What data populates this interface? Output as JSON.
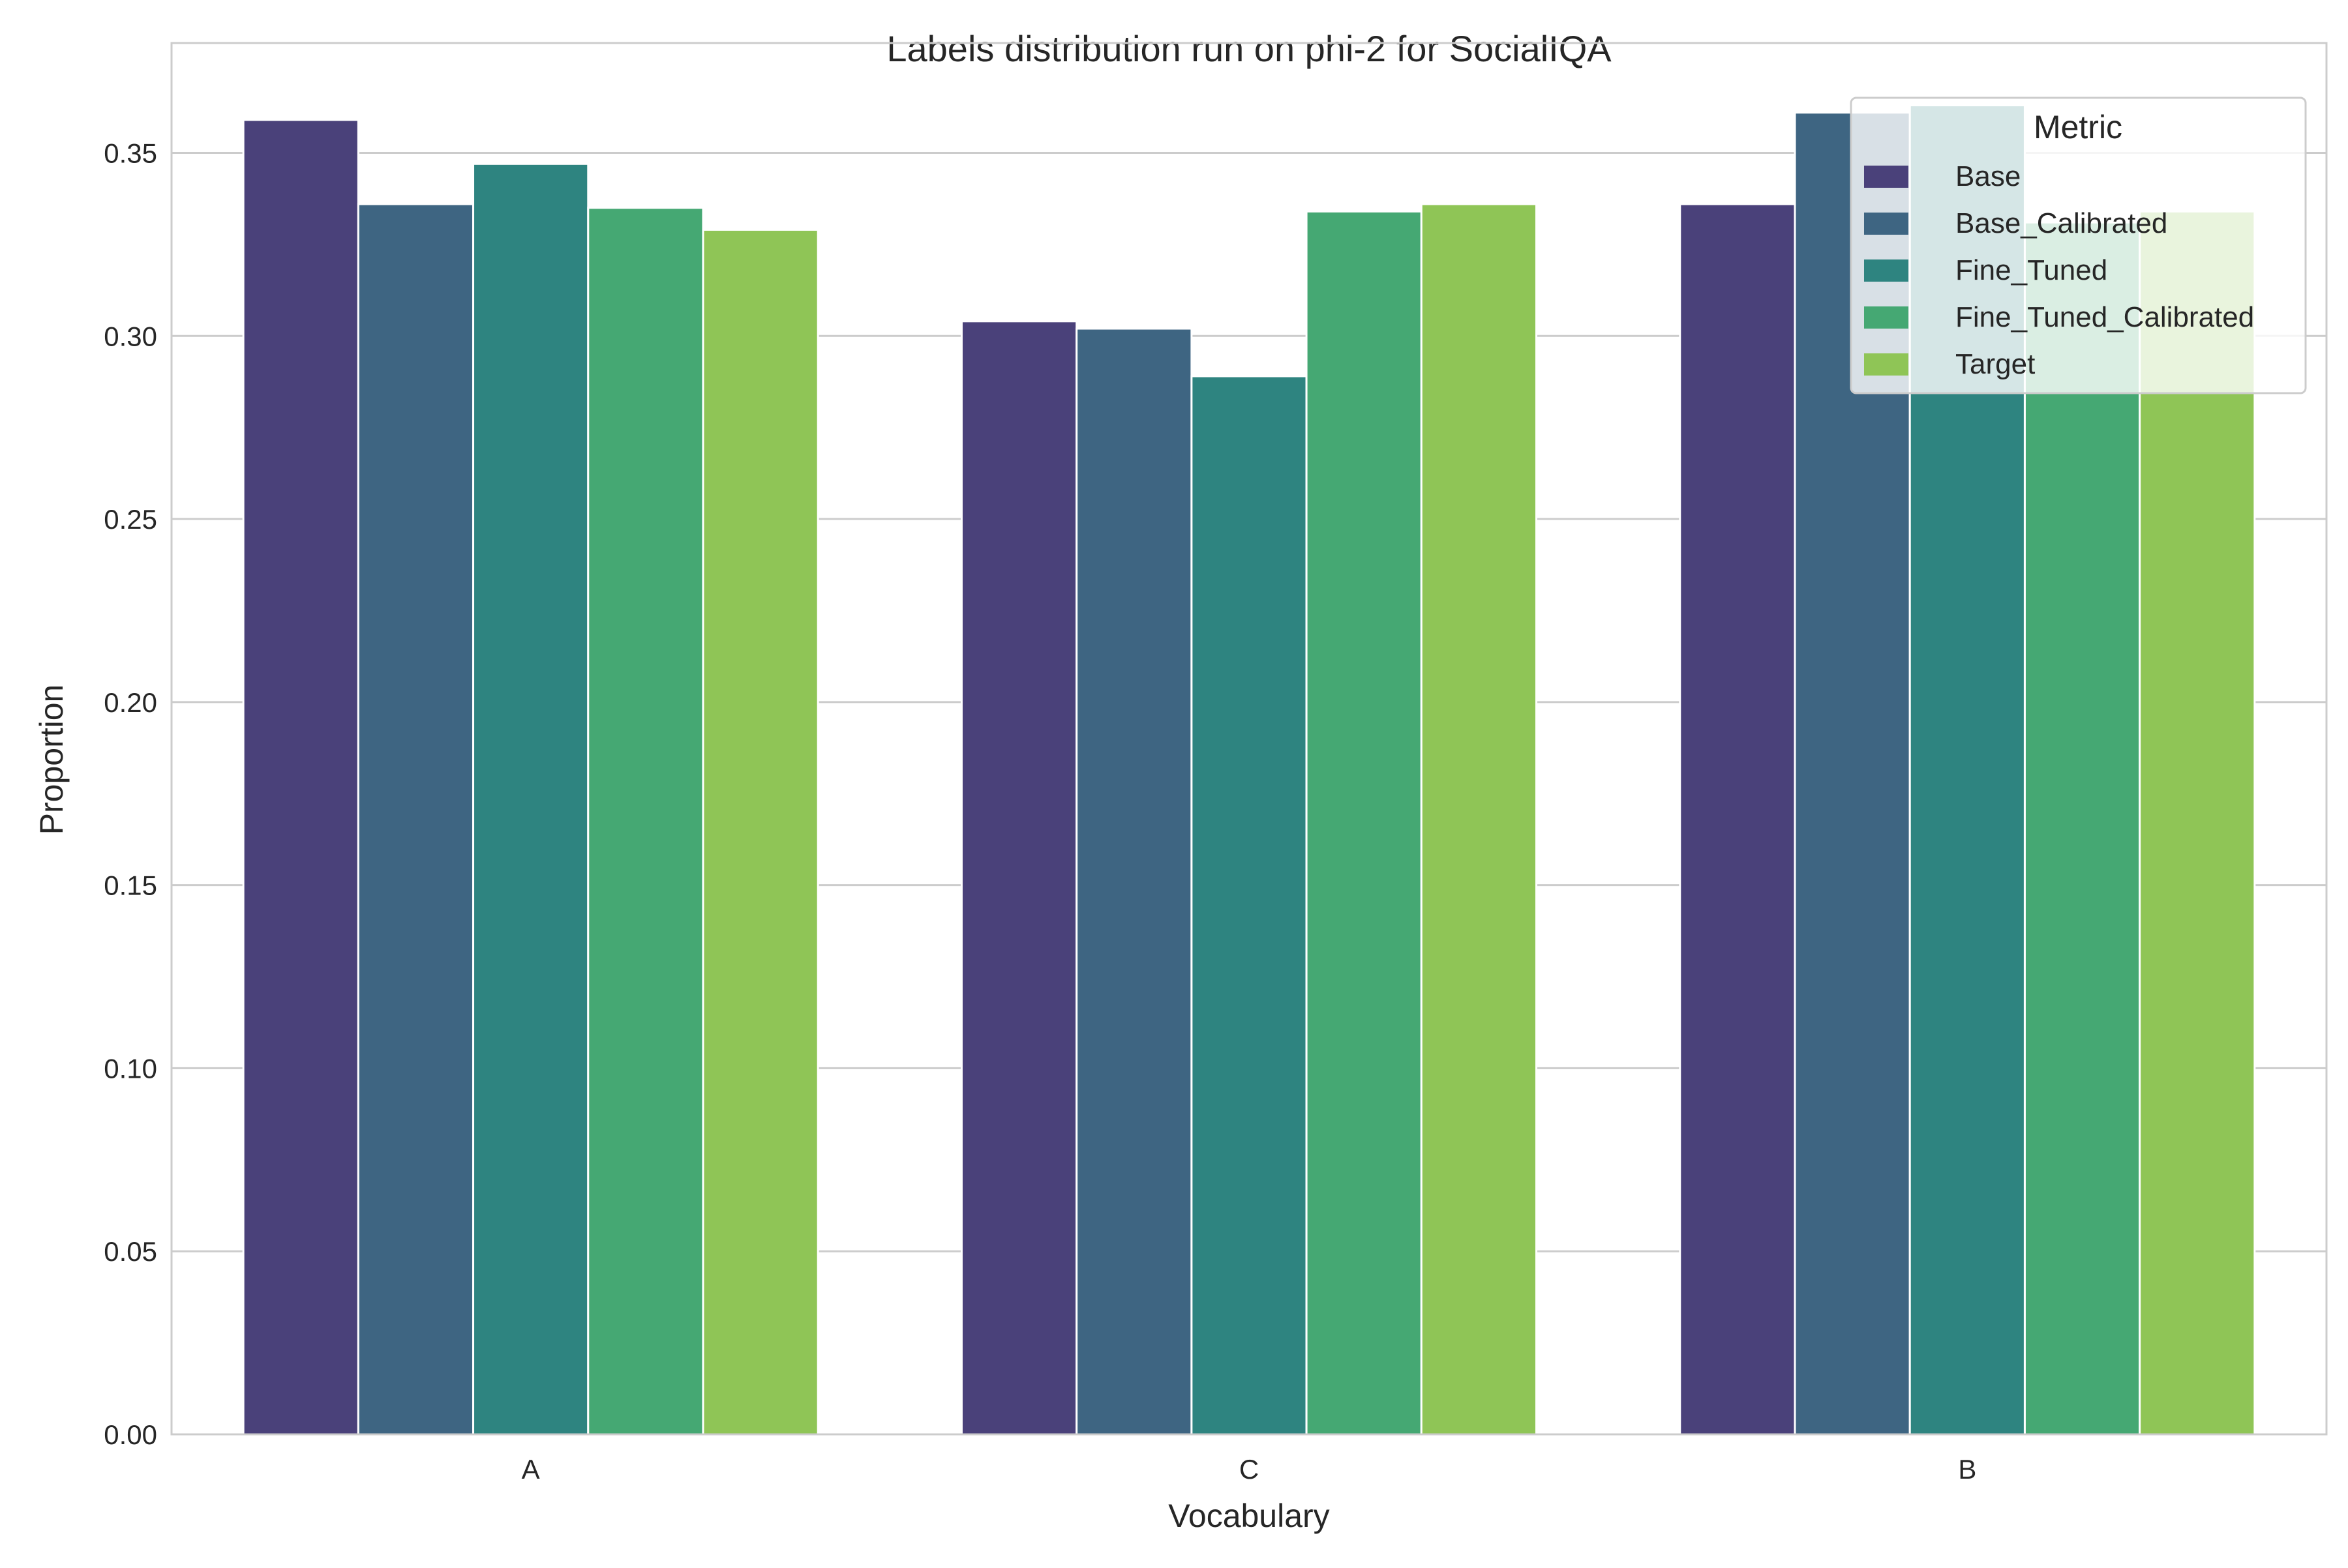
{
  "chart_data": {
    "type": "bar",
    "title": "Labels distribution run on phi-2 for SocialIQA",
    "xlabel": "Vocabulary",
    "ylabel": "Proportion",
    "categories": [
      "A",
      "C",
      "B"
    ],
    "ylim": [
      0,
      0.38
    ],
    "yticks": [
      0.0,
      0.05,
      0.1,
      0.15,
      0.2,
      0.25,
      0.3,
      0.35
    ],
    "ytick_labels": [
      "0.00",
      "0.05",
      "0.10",
      "0.15",
      "0.20",
      "0.25",
      "0.30",
      "0.35"
    ],
    "grid": "horizontal",
    "legend": {
      "title": "Metric",
      "placement": "top-right"
    },
    "series": [
      {
        "name": "Base",
        "color": "#4a417a",
        "values": [
          0.359,
          0.304,
          0.336
        ]
      },
      {
        "name": "Base_Calibrated",
        "color": "#3e6582",
        "values": [
          0.336,
          0.302,
          0.361
        ]
      },
      {
        "name": "Fine_Tuned",
        "color": "#2e8480",
        "values": [
          0.347,
          0.289,
          0.363
        ]
      },
      {
        "name": "Fine_Tuned_Calibrated",
        "color": "#45a873",
        "values": [
          0.335,
          0.334,
          0.331
        ]
      },
      {
        "name": "Target",
        "color": "#8fc556",
        "values": [
          0.329,
          0.336,
          0.334
        ]
      }
    ]
  }
}
